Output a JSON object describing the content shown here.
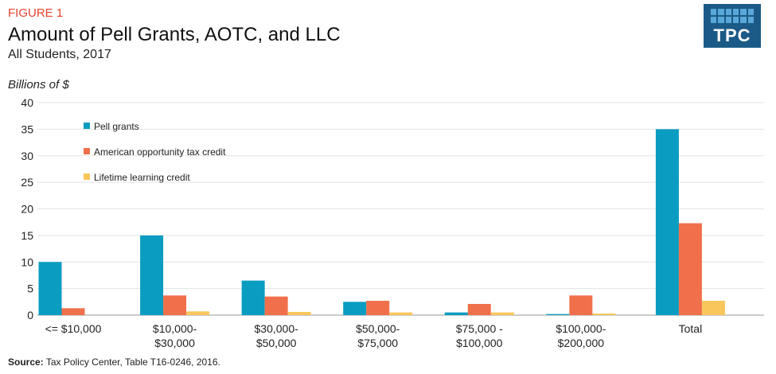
{
  "figure_label": "FIGURE 1",
  "title": "Amount of Pell Grants, AOTC, and LLC",
  "subtitle": "All Students, 2017",
  "source_label": "Source:",
  "source_text": "Tax Policy Center, Table T16-0246, 2016.",
  "logo_text": "TPC",
  "chart_data": {
    "type": "bar",
    "ylabel": "Billions of $",
    "ylim": [
      0,
      40
    ],
    "yticks": [
      0,
      5,
      10,
      15,
      20,
      25,
      30,
      35,
      40
    ],
    "grid": true,
    "legend_position": "top-left",
    "categories": [
      [
        "<= $10,000"
      ],
      [
        "$10,000-",
        "$30,000"
      ],
      [
        "$30,000-",
        "$50,000"
      ],
      [
        "$50,000-",
        "$75,000"
      ],
      [
        "$75,000 -",
        "$100,000"
      ],
      [
        "$100,000-",
        "$200,000"
      ],
      [
        "Total"
      ]
    ],
    "series": [
      {
        "name": "Pell grants",
        "color": "#0a9cc1",
        "values": [
          10.0,
          15.0,
          6.5,
          2.5,
          0.5,
          0.2,
          35.0
        ]
      },
      {
        "name": "American opportunity tax credit",
        "color": "#f0704b",
        "values": [
          1.3,
          3.7,
          3.5,
          2.7,
          2.1,
          3.7,
          17.3
        ]
      },
      {
        "name": "Lifetime learning credit",
        "color": "#f9c65c",
        "values": [
          0.0,
          0.7,
          0.6,
          0.5,
          0.5,
          0.3,
          2.7
        ]
      }
    ]
  }
}
